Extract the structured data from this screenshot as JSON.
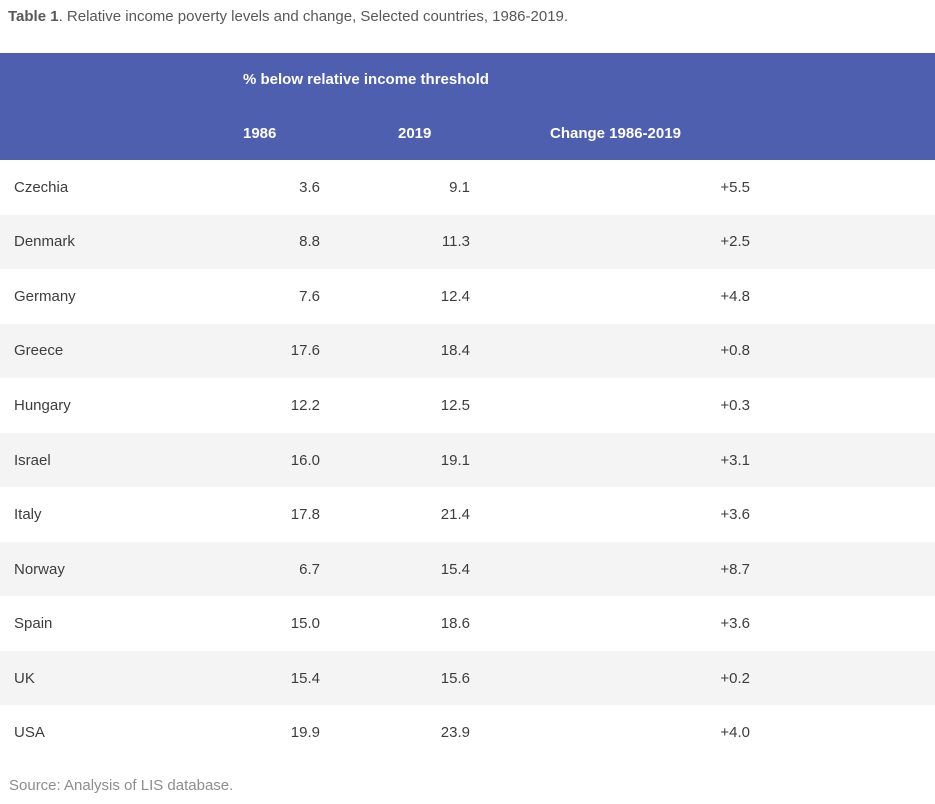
{
  "title": {
    "prefix": "Table 1",
    "rest": ". Relative income poverty levels and change, Selected countries, 1986-2019."
  },
  "table": {
    "group_header": "% below relative income threshold",
    "columns": [
      "",
      "1986",
      "2019",
      "Change 1986-2019"
    ],
    "rows": [
      {
        "country": "Czechia",
        "y1986": "3.6",
        "y2019": "9.1",
        "change": "+5.5"
      },
      {
        "country": "Denmark",
        "y1986": "8.8",
        "y2019": "11.3",
        "change": "+2.5"
      },
      {
        "country": "Germany",
        "y1986": "7.6",
        "y2019": "12.4",
        "change": "+4.8"
      },
      {
        "country": "Greece",
        "y1986": "17.6",
        "y2019": "18.4",
        "change": "+0.8"
      },
      {
        "country": "Hungary",
        "y1986": "12.2",
        "y2019": "12.5",
        "change": "+0.3"
      },
      {
        "country": "Israel",
        "y1986": "16.0",
        "y2019": "19.1",
        "change": "+3.1"
      },
      {
        "country": "Italy",
        "y1986": "17.8",
        "y2019": "21.4",
        "change": "+3.6"
      },
      {
        "country": "Norway",
        "y1986": "6.7",
        "y2019": "15.4",
        "change": "+8.7"
      },
      {
        "country": "Spain",
        "y1986": "15.0",
        "y2019": "18.6",
        "change": "+3.6"
      },
      {
        "country": "UK",
        "y1986": "15.4",
        "y2019": "15.6",
        "change": "+0.2"
      },
      {
        "country": "USA",
        "y1986": "19.9",
        "y2019": "23.9",
        "change": "+4.0"
      }
    ]
  },
  "source": "Source: Analysis of LIS database.",
  "colors": {
    "header_bg": "#4d5fae",
    "row_alt_bg": "#f4f4f4",
    "cell_text": "#3d3d3d",
    "title_text": "#58585a",
    "source_text": "#8d8d8d"
  },
  "chart_data": {
    "type": "table",
    "title": "Table 1. Relative income poverty levels and change, Selected countries, 1986-2019.",
    "group_header": "% below relative income threshold",
    "columns": [
      "",
      "1986",
      "2019",
      "Change 1986-2019"
    ],
    "countries": [
      "Czechia",
      "Denmark",
      "Germany",
      "Greece",
      "Hungary",
      "Israel",
      "Italy",
      "Norway",
      "Spain",
      "UK",
      "USA"
    ],
    "series": [
      {
        "name": "1986",
        "values": [
          3.6,
          8.8,
          7.6,
          17.6,
          12.2,
          16.0,
          17.8,
          6.7,
          15.0,
          15.4,
          19.9
        ]
      },
      {
        "name": "2019",
        "values": [
          9.1,
          11.3,
          12.4,
          18.4,
          12.5,
          19.1,
          21.4,
          15.4,
          18.6,
          15.6,
          23.9
        ]
      },
      {
        "name": "Change 1986-2019",
        "values": [
          "+5.5",
          "+2.5",
          "+4.8",
          "+0.8",
          "+0.3",
          "+3.1",
          "+3.6",
          "+8.7",
          "+3.6",
          "+0.2",
          "+4.0"
        ]
      }
    ],
    "source": "Source: Analysis of LIS database."
  }
}
